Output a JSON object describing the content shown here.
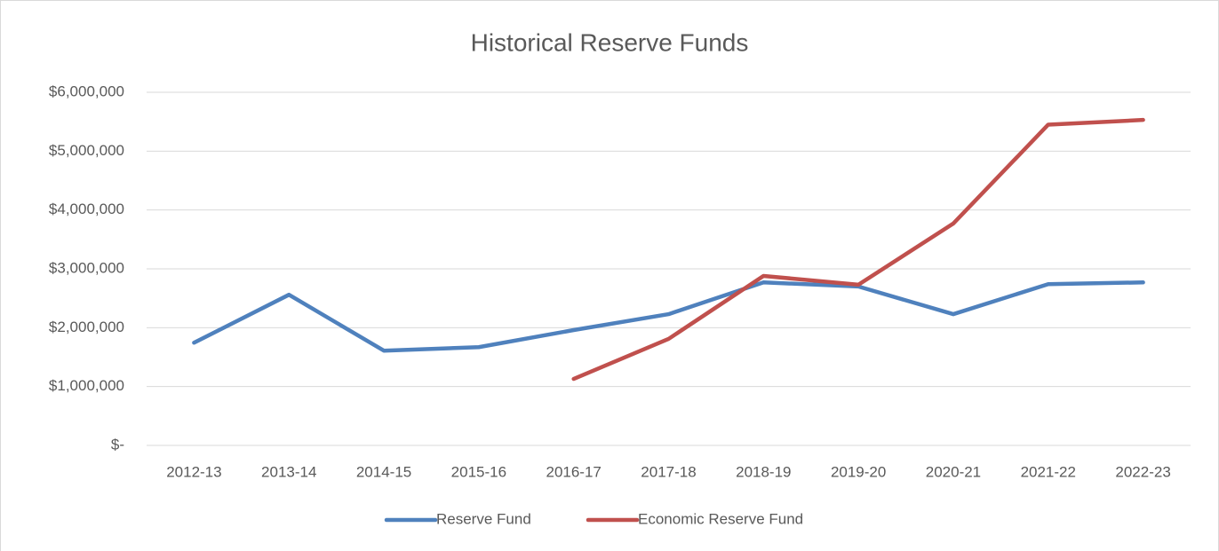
{
  "chart_data": {
    "type": "line",
    "title": "Historical Reserve Funds",
    "categories": [
      "2012-13",
      "2013-14",
      "2014-15",
      "2015-16",
      "2016-17",
      "2017-18",
      "2018-19",
      "2019-20",
      "2020-21",
      "2021-22",
      "2022-23"
    ],
    "series": [
      {
        "name": "Reserve Fund",
        "color": "#4f81bd",
        "values": [
          1745000,
          2560000,
          1610000,
          1670000,
          1960000,
          2230000,
          2770000,
          2700000,
          2230000,
          2740000,
          2770000
        ]
      },
      {
        "name": "Economic Reserve Fund",
        "color": "#c0504d",
        "values": [
          null,
          null,
          null,
          null,
          1130000,
          1810000,
          2880000,
          2730000,
          3770000,
          5450000,
          5530000
        ]
      }
    ],
    "ylim": [
      0,
      6000000
    ],
    "yticks": [
      {
        "value": 0,
        "label": "$-"
      },
      {
        "value": 1000000,
        "label": "$1,000,000"
      },
      {
        "value": 2000000,
        "label": "$2,000,000"
      },
      {
        "value": 3000000,
        "label": "$3,000,000"
      },
      {
        "value": 4000000,
        "label": "$4,000,000"
      },
      {
        "value": 5000000,
        "label": "$5,000,000"
      },
      {
        "value": 6000000,
        "label": "$6,000,000"
      }
    ],
    "grid": true,
    "legend": "bottom"
  }
}
